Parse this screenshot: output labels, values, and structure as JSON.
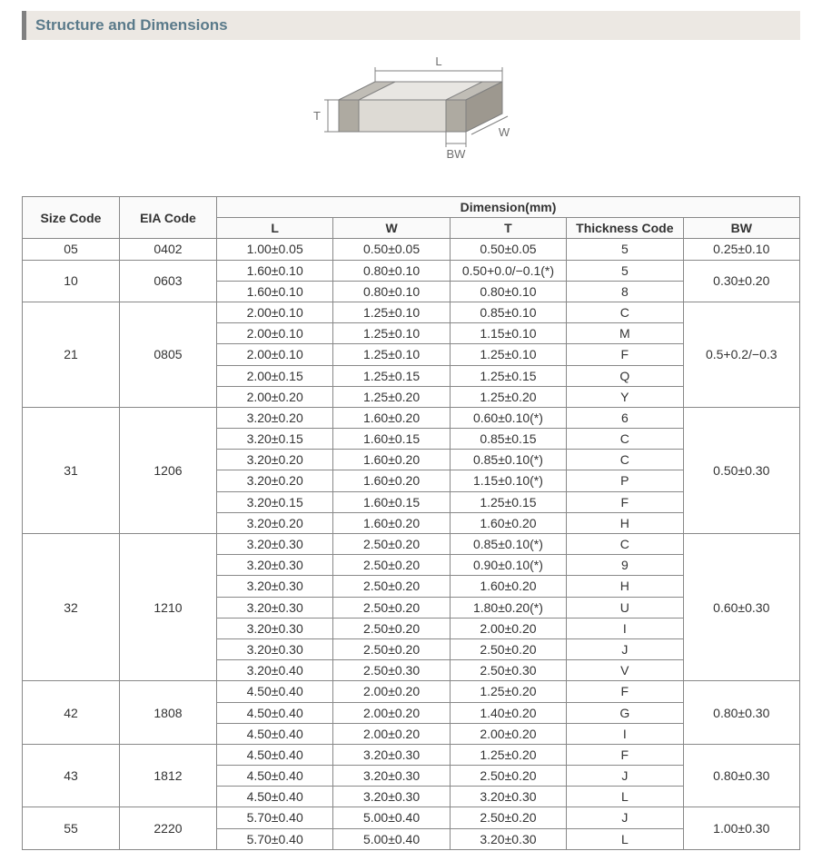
{
  "header": {
    "title": "Structure and Dimensions"
  },
  "diagram": {
    "labels": {
      "L": "L",
      "W": "W",
      "T": "T",
      "BW": "BW"
    },
    "colors": {
      "top": "#e8e6e2",
      "front": "#dddad4",
      "side": "#c9c4bb",
      "term_top": "#c0bdb6",
      "term_front": "#aeaaa1",
      "term_side": "#9d988f",
      "stroke": "#808080",
      "dim": "#808080",
      "dim_text": "#707070"
    }
  },
  "table": {
    "head": {
      "size": "Size Code",
      "eia": "EIA Code",
      "dimension": "Dimension",
      "dim_unit": "(mm)",
      "L": "L",
      "W": "W",
      "T": "T",
      "thickness": "Thickness  Code",
      "BW": "BW"
    },
    "groups": [
      {
        "size": "05",
        "eia": "0402",
        "bw": "0.25±0.10",
        "rows": [
          {
            "L": "1.00±0.05",
            "W": "0.50±0.05",
            "T": "0.50±0.05",
            "thk": "5"
          }
        ]
      },
      {
        "size": "10",
        "eia": "0603",
        "bw": "0.30±0.20",
        "rows": [
          {
            "L": "1.60±0.10",
            "W": "0.80±0.10",
            "T": "0.50+0.0/−0.1(*)",
            "thk": "5"
          },
          {
            "L": "1.60±0.10",
            "W": "0.80±0.10",
            "T": "0.80±0.10",
            "thk": "8"
          }
        ]
      },
      {
        "size": "21",
        "eia": "0805",
        "bw": "0.5+0.2/−0.3",
        "rows": [
          {
            "L": "2.00±0.10",
            "W": "1.25±0.10",
            "T": "0.85±0.10",
            "thk": "C"
          },
          {
            "L": "2.00±0.10",
            "W": "1.25±0.10",
            "T": "1.15±0.10",
            "thk": "M"
          },
          {
            "L": "2.00±0.10",
            "W": "1.25±0.10",
            "T": "1.25±0.10",
            "thk": "F"
          },
          {
            "L": "2.00±0.15",
            "W": "1.25±0.15",
            "T": "1.25±0.15",
            "thk": "Q"
          },
          {
            "L": "2.00±0.20",
            "W": "1.25±0.20",
            "T": "1.25±0.20",
            "thk": "Y"
          }
        ]
      },
      {
        "size": "31",
        "eia": "1206",
        "bw": "0.50±0.30",
        "rows": [
          {
            "L": "3.20±0.20",
            "W": "1.60±0.20",
            "T": "0.60±0.10(*)",
            "thk": "6"
          },
          {
            "L": "3.20±0.15",
            "W": "1.60±0.15",
            "T": "0.85±0.15",
            "thk": "C"
          },
          {
            "L": "3.20±0.20",
            "W": "1.60±0.20",
            "T": "0.85±0.10(*)",
            "thk": "C"
          },
          {
            "L": "3.20±0.20",
            "W": "1.60±0.20",
            "T": "1.15±0.10(*)",
            "thk": "P"
          },
          {
            "L": "3.20±0.15",
            "W": "1.60±0.15",
            "T": "1.25±0.15",
            "thk": "F"
          },
          {
            "L": "3.20±0.20",
            "W": "1.60±0.20",
            "T": "1.60±0.20",
            "thk": "H"
          }
        ]
      },
      {
        "size": "32",
        "eia": "1210",
        "bw": "0.60±0.30",
        "rows": [
          {
            "L": "3.20±0.30",
            "W": "2.50±0.20",
            "T": "0.85±0.10(*)",
            "thk": "C"
          },
          {
            "L": "3.20±0.30",
            "W": "2.50±0.20",
            "T": "0.90±0.10(*)",
            "thk": "9"
          },
          {
            "L": "3.20±0.30",
            "W": "2.50±0.20",
            "T": "1.60±0.20",
            "thk": "H"
          },
          {
            "L": "3.20±0.30",
            "W": "2.50±0.20",
            "T": "1.80±0.20(*)",
            "thk": "U"
          },
          {
            "L": "3.20±0.30",
            "W": "2.50±0.20",
            "T": "2.00±0.20",
            "thk": "I"
          },
          {
            "L": "3.20±0.30",
            "W": "2.50±0.20",
            "T": "2.50±0.20",
            "thk": "J"
          },
          {
            "L": "3.20±0.40",
            "W": "2.50±0.30",
            "T": "2.50±0.30",
            "thk": "V"
          }
        ]
      },
      {
        "size": "42",
        "eia": "1808",
        "bw": "0.80±0.30",
        "rows": [
          {
            "L": "4.50±0.40",
            "W": "2.00±0.20",
            "T": "1.25±0.20",
            "thk": "F"
          },
          {
            "L": "4.50±0.40",
            "W": "2.00±0.20",
            "T": "1.40±0.20",
            "thk": "G"
          },
          {
            "L": "4.50±0.40",
            "W": "2.00±0.20",
            "T": "2.00±0.20",
            "thk": "I"
          }
        ]
      },
      {
        "size": "43",
        "eia": "1812",
        "bw": "0.80±0.30",
        "rows": [
          {
            "L": "4.50±0.40",
            "W": "3.20±0.30",
            "T": "1.25±0.20",
            "thk": "F"
          },
          {
            "L": "4.50±0.40",
            "W": "3.20±0.30",
            "T": "2.50±0.20",
            "thk": "J"
          },
          {
            "L": "4.50±0.40",
            "W": "3.20±0.30",
            "T": "3.20±0.30",
            "thk": "L"
          }
        ]
      },
      {
        "size": "55",
        "eia": "2220",
        "bw": "1.00±0.30",
        "rows": [
          {
            "L": "5.70±0.40",
            "W": "5.00±0.40",
            "T": "2.50±0.20",
            "thk": "J"
          },
          {
            "L": "5.70±0.40",
            "W": "5.00±0.40",
            "T": "3.20±0.30",
            "thk": "L"
          }
        ]
      }
    ]
  }
}
